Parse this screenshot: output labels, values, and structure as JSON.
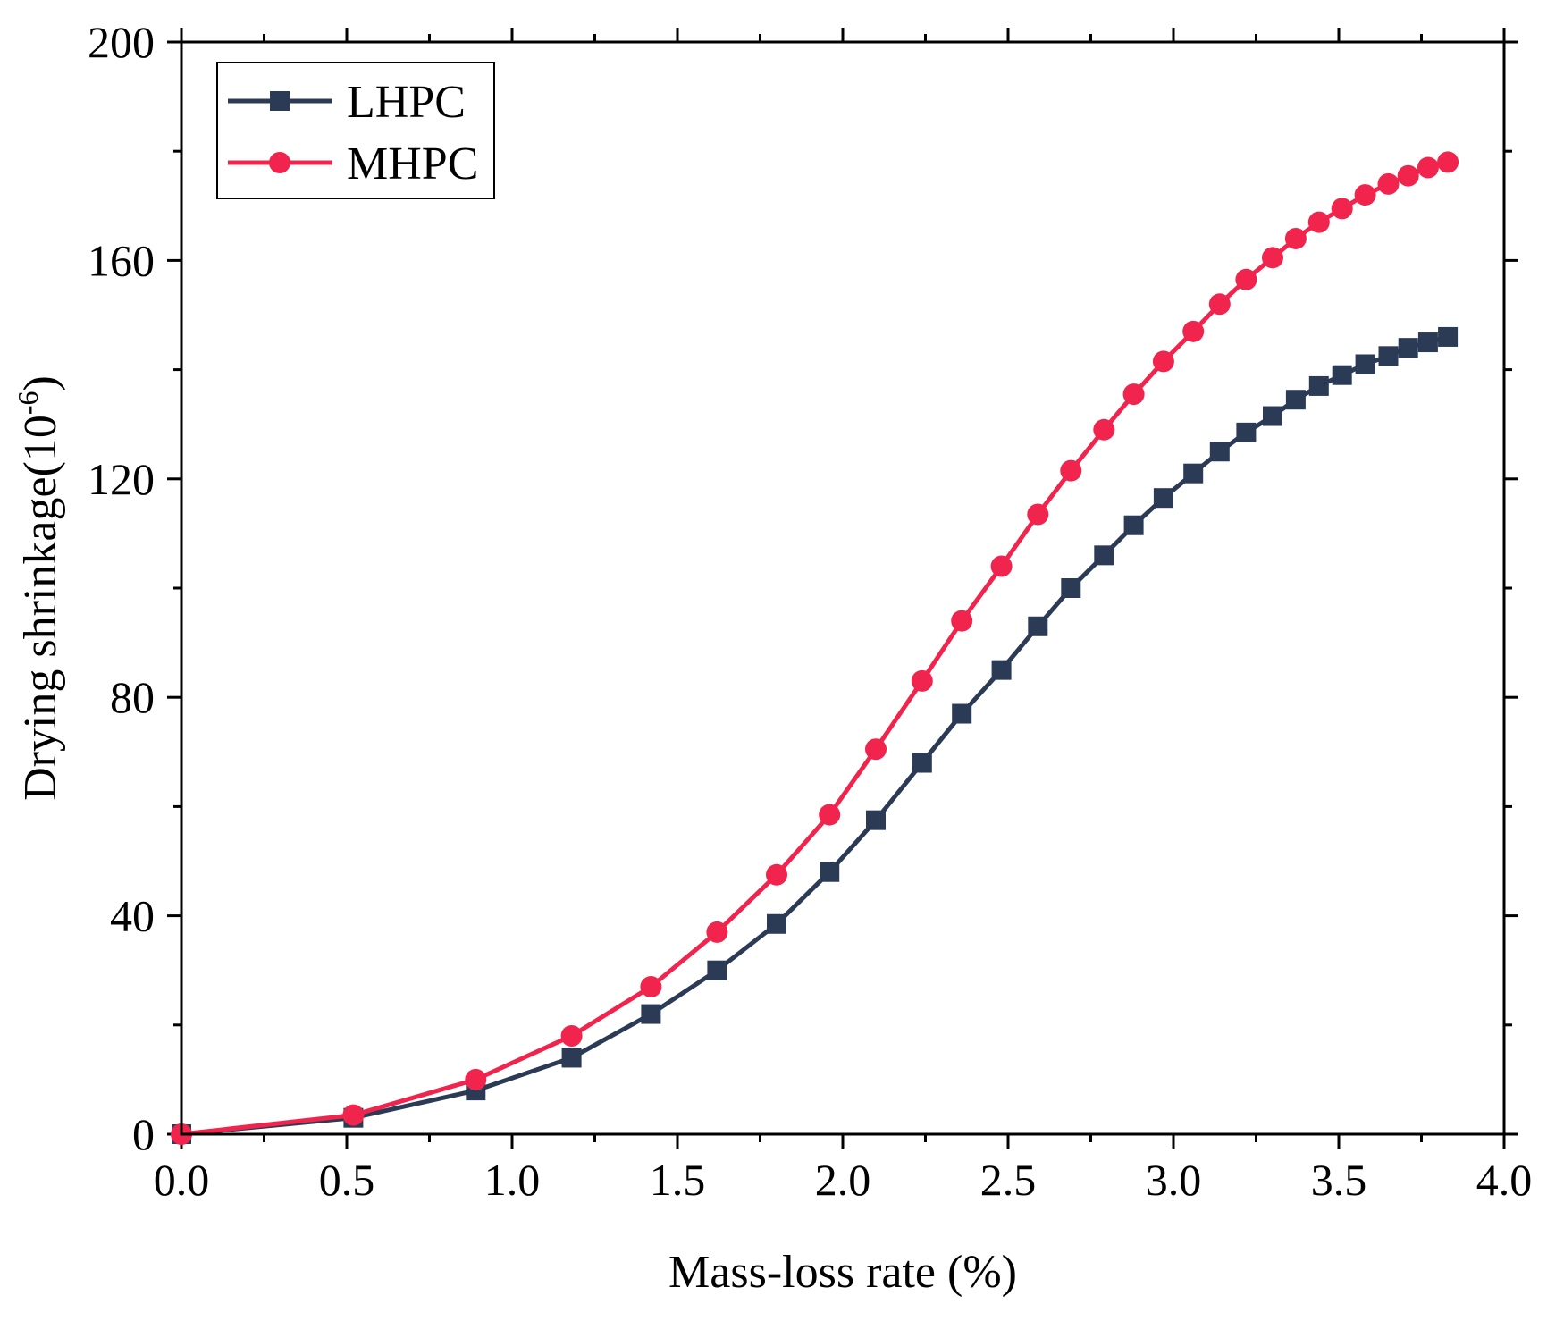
{
  "chart_data": {
    "type": "line",
    "title": "",
    "xlabel": "Mass-loss rate (%)",
    "ylabel": "Drying shrinkage(10",
    "ylabel_sup": "-6",
    "ylabel_close": ")",
    "xlim": [
      0,
      4.0
    ],
    "ylim": [
      0,
      200
    ],
    "grid": false,
    "legend_position": "top-left",
    "x_ticks": [
      "0.0",
      "0.5",
      "1.0",
      "1.5",
      "2.0",
      "2.5",
      "3.0",
      "3.5",
      "4.0"
    ],
    "y_ticks": [
      "0",
      "40",
      "80",
      "120",
      "160",
      "200"
    ],
    "series": [
      {
        "name": "LHPC",
        "color": "#2b3a55",
        "marker": "square",
        "x": [
          0.0,
          0.52,
          0.89,
          1.18,
          1.42,
          1.62,
          1.8,
          1.96,
          2.1,
          2.24,
          2.36,
          2.48,
          2.59,
          2.69,
          2.79,
          2.88,
          2.97,
          3.06,
          3.14,
          3.22,
          3.3,
          3.37,
          3.44,
          3.51,
          3.58,
          3.65,
          3.71,
          3.77,
          3.83
        ],
        "y": [
          0,
          3,
          8,
          14,
          22,
          30,
          38.5,
          48,
          57.5,
          68,
          77,
          85,
          93,
          100,
          106,
          111.5,
          116.5,
          121,
          125,
          128.5,
          131.5,
          134.5,
          137,
          139,
          141,
          142.5,
          144,
          145,
          146
        ]
      },
      {
        "name": "MHPC",
        "color": "#f0244c",
        "marker": "circle",
        "x": [
          0.0,
          0.52,
          0.89,
          1.18,
          1.42,
          1.62,
          1.8,
          1.96,
          2.1,
          2.24,
          2.36,
          2.48,
          2.59,
          2.69,
          2.79,
          2.88,
          2.97,
          3.06,
          3.14,
          3.22,
          3.3,
          3.37,
          3.44,
          3.51,
          3.58,
          3.65,
          3.71,
          3.77,
          3.83
        ],
        "y": [
          0,
          3.5,
          10,
          18,
          27,
          37,
          47.5,
          58.5,
          70.5,
          83,
          94,
          104,
          113.5,
          121.5,
          129,
          135.5,
          141.5,
          147,
          152,
          156.5,
          160.5,
          164,
          167,
          169.5,
          172,
          174,
          175.5,
          177,
          178
        ]
      }
    ]
  }
}
